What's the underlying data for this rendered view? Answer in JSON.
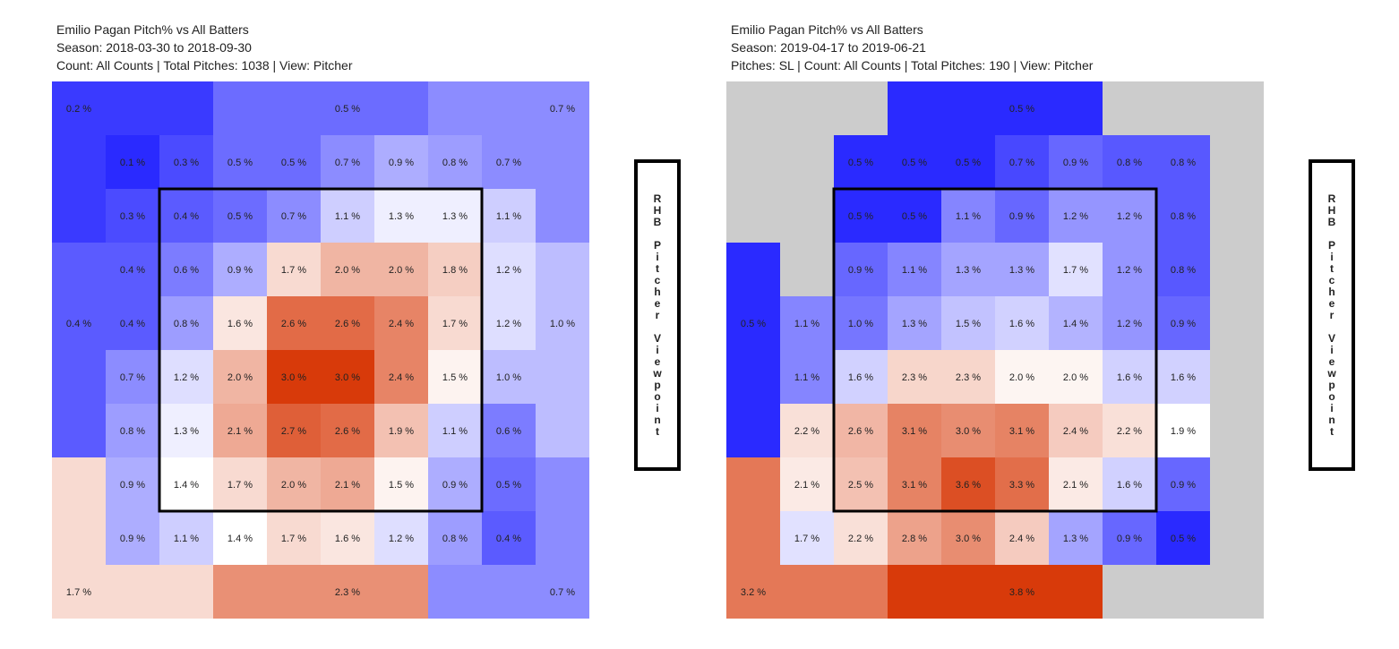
{
  "charts": [
    {
      "title_lines": [
        "Emilio Pagan Pitch% vs All Batters",
        "Season: 2018-03-30 to 2018-09-30",
        "Count: All Counts | Total Pitches: 1038 | View: Pitcher"
      ],
      "side_label": "RHB Pitcher Viewpoint"
    },
    {
      "title_lines": [
        "Emilio Pagan Pitch% vs All Batters",
        "Season: 2019-04-17 to 2019-06-21",
        "Pitches: SL | Count: All Counts | Total Pitches: 190 | View: Pitcher"
      ],
      "side_label": "RHB Pitcher Viewpoint"
    }
  ],
  "chart_data": [
    {
      "type": "heatmap",
      "title": "Emilio Pagan Pitch% vs All Batters",
      "unit": "%",
      "strike_zone": {
        "rows": [
          2,
          8
        ],
        "cols": [
          2,
          8
        ]
      },
      "cells": [
        [
          null,
          0.1,
          0.3,
          0.5,
          0.5,
          0.7,
          0.9,
          0.8,
          0.7,
          null
        ],
        [
          null,
          0.3,
          0.4,
          0.5,
          0.7,
          1.1,
          1.3,
          1.3,
          1.1,
          null
        ],
        [
          null,
          0.4,
          0.6,
          0.9,
          1.7,
          2.0,
          2.0,
          1.8,
          1.2,
          null
        ],
        [
          null,
          0.4,
          0.8,
          1.6,
          2.6,
          2.6,
          2.4,
          1.7,
          1.2,
          null
        ],
        [
          null,
          0.7,
          1.2,
          2.0,
          3.0,
          3.0,
          2.4,
          1.5,
          1.0,
          null
        ],
        [
          null,
          0.8,
          1.3,
          2.1,
          2.7,
          2.6,
          1.9,
          1.1,
          0.6,
          null
        ],
        [
          null,
          0.9,
          1.4,
          1.7,
          2.0,
          2.1,
          1.5,
          0.9,
          0.5,
          null
        ],
        [
          null,
          0.9,
          1.1,
          1.4,
          1.7,
          1.6,
          1.2,
          0.8,
          0.4,
          null
        ]
      ],
      "outer_regions": [
        {
          "name": "top-left",
          "value": 0.2,
          "label": "0.2 %"
        },
        {
          "name": "top",
          "value": 0.5,
          "label": "0.5 %"
        },
        {
          "name": "top-right",
          "value": 0.7,
          "label": "0.7 %"
        },
        {
          "name": "left",
          "value": 0.4,
          "label": "0.4 %"
        },
        {
          "name": "right",
          "value": 1.0,
          "label": "1.0 %"
        },
        {
          "name": "bottom-left",
          "value": 1.7,
          "label": "1.7 %"
        },
        {
          "name": "bottom",
          "value": 2.3,
          "label": "2.3 %"
        },
        {
          "name": "bottom-right",
          "value": 0.7,
          "label": "0.7 %"
        }
      ],
      "color_scale": {
        "low": "#2a2aff",
        "mid": "#ffffff",
        "high": "#d83a0a",
        "min": 0.1,
        "mid_value": 1.4,
        "max": 3.0
      }
    },
    {
      "type": "heatmap",
      "title": "Emilio Pagan Pitch% vs All Batters",
      "unit": "%",
      "strike_zone": {
        "rows": [
          2,
          8
        ],
        "cols": [
          2,
          8
        ]
      },
      "cells": [
        [
          null,
          null,
          0.5,
          0.5,
          0.5,
          0.7,
          0.9,
          0.8,
          0.8,
          null
        ],
        [
          null,
          null,
          0.5,
          0.5,
          1.1,
          0.9,
          1.2,
          1.2,
          0.8,
          null
        ],
        [
          null,
          null,
          0.9,
          1.1,
          1.3,
          1.3,
          1.7,
          1.2,
          0.8,
          null
        ],
        [
          null,
          1.1,
          1.0,
          1.3,
          1.5,
          1.6,
          1.4,
          1.2,
          0.9,
          null
        ],
        [
          null,
          1.1,
          1.6,
          2.3,
          2.3,
          2.0,
          2.0,
          1.6,
          1.6,
          null
        ],
        [
          null,
          2.2,
          2.6,
          3.1,
          3.0,
          3.1,
          2.4,
          2.2,
          1.9,
          null
        ],
        [
          null,
          2.1,
          2.5,
          3.1,
          3.6,
          3.3,
          2.1,
          1.6,
          0.9,
          null
        ],
        [
          null,
          1.7,
          2.2,
          2.8,
          3.0,
          2.4,
          1.3,
          0.9,
          0.5,
          null
        ]
      ],
      "outer_regions": [
        {
          "name": "top",
          "value": 0.5,
          "label": "0.5 %"
        },
        {
          "name": "left",
          "value": 0.5,
          "label": "0.5 %"
        },
        {
          "name": "bottom-left",
          "value": 3.2,
          "label": "3.2 %"
        },
        {
          "name": "bottom",
          "value": 3.8,
          "label": "3.8 %"
        }
      ],
      "empty_color": "#cccccc",
      "color_scale": {
        "low": "#2a2aff",
        "mid": "#ffffff",
        "high": "#d83a0a",
        "min": 0.5,
        "mid_value": 1.9,
        "max": 3.8
      }
    }
  ]
}
